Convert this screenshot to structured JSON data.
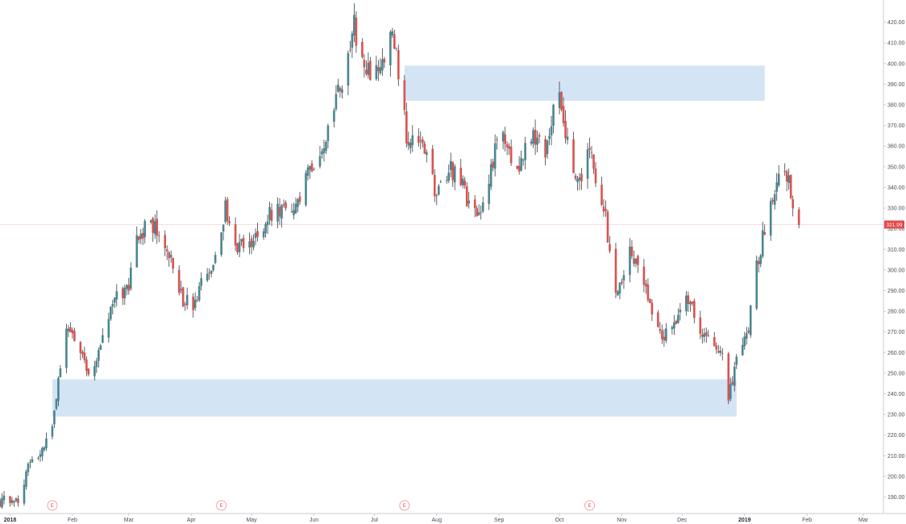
{
  "chart_data": {
    "type": "candlestick",
    "title": "",
    "xlabel": "",
    "ylabel": "",
    "ylim": [
      182,
      430
    ],
    "y_ticks": [
      "190.00",
      "200.00",
      "210.00",
      "220.00",
      "230.00",
      "240.00",
      "250.00",
      "260.00",
      "270.00",
      "280.00",
      "290.00",
      "300.00",
      "310.00",
      "320.00",
      "330.00",
      "340.00",
      "350.00",
      "360.00",
      "370.00",
      "380.00",
      "390.00",
      "400.00",
      "410.00",
      "420.00"
    ],
    "x_ticks": [
      {
        "label": "2018",
        "date": "2018-01-01",
        "year": true
      },
      {
        "label": "Feb",
        "date": "2018-02-01"
      },
      {
        "label": "Mar",
        "date": "2018-03-01"
      },
      {
        "label": "Apr",
        "date": "2018-04-01"
      },
      {
        "label": "May",
        "date": "2018-05-01"
      },
      {
        "label": "Jun",
        "date": "2018-06-01"
      },
      {
        "label": "Jul",
        "date": "2018-07-01"
      },
      {
        "label": "Aug",
        "date": "2018-08-01"
      },
      {
        "label": "Sep",
        "date": "2018-09-01"
      },
      {
        "label": "Oct",
        "date": "2018-10-01"
      },
      {
        "label": "Nov",
        "date": "2018-11-01"
      },
      {
        "label": "Dec",
        "date": "2018-12-01"
      },
      {
        "label": "2019",
        "date": "2019-01-01",
        "year": true
      },
      {
        "label": "Feb",
        "date": "2019-02-01"
      },
      {
        "label": "Mar",
        "date": "2019-03-01"
      }
    ],
    "x_range": [
      "2017-12-27",
      "2019-03-11"
    ],
    "last_price": {
      "label": "321.99",
      "value": 321.99
    },
    "earnings": [
      {
        "label": "E",
        "date": "2018-01-22"
      },
      {
        "label": "E",
        "date": "2018-04-16"
      },
      {
        "label": "E",
        "date": "2018-07-16"
      },
      {
        "label": "E",
        "date": "2018-10-16"
      }
    ],
    "zones": [
      {
        "x_start": "2018-01-22",
        "x_end": "2018-12-28",
        "y_low": 229,
        "y_high": 247
      },
      {
        "x_start": "2018-07-16",
        "x_end": "2019-01-11",
        "y_low": 382,
        "y_high": 399
      }
    ],
    "up_color": "#4a8690",
    "down_color": "#d9534f",
    "zone_color": "#d3e4f4",
    "last_price_color": "#e5484d",
    "waypoints": [
      [
        "2017-12-27",
        188
      ],
      [
        "2018-01-05",
        189
      ],
      [
        "2018-01-10",
        205
      ],
      [
        "2018-01-17",
        213
      ],
      [
        "2018-01-22",
        222
      ],
      [
        "2018-01-25",
        250
      ],
      [
        "2018-01-29",
        272
      ],
      [
        "2018-02-06",
        260
      ],
      [
        "2018-02-09",
        250
      ],
      [
        "2018-02-15",
        262
      ],
      [
        "2018-02-21",
        284
      ],
      [
        "2018-03-01",
        292
      ],
      [
        "2018-03-06",
        318
      ],
      [
        "2018-03-12",
        322
      ],
      [
        "2018-03-16",
        318
      ],
      [
        "2018-03-22",
        306
      ],
      [
        "2018-03-27",
        287
      ],
      [
        "2018-04-02",
        281
      ],
      [
        "2018-04-06",
        292
      ],
      [
        "2018-04-12",
        300
      ],
      [
        "2018-04-16",
        316
      ],
      [
        "2018-04-18",
        334
      ],
      [
        "2018-04-20",
        320
      ],
      [
        "2018-04-25",
        311
      ],
      [
        "2018-05-01",
        312
      ],
      [
        "2018-05-08",
        325
      ],
      [
        "2018-05-14",
        330
      ],
      [
        "2018-05-22",
        325
      ],
      [
        "2018-05-31",
        352
      ],
      [
        "2018-06-08",
        365
      ],
      [
        "2018-06-13",
        385
      ],
      [
        "2018-06-19",
        405
      ],
      [
        "2018-06-21",
        419
      ],
      [
        "2018-06-26",
        394
      ],
      [
        "2018-07-02",
        398
      ],
      [
        "2018-07-06",
        402
      ],
      [
        "2018-07-10",
        415
      ],
      [
        "2018-07-13",
        396
      ],
      [
        "2018-07-17",
        366
      ],
      [
        "2018-07-23",
        360
      ],
      [
        "2018-07-27",
        356
      ],
      [
        "2018-08-01",
        335
      ],
      [
        "2018-08-08",
        349
      ],
      [
        "2018-08-14",
        340
      ],
      [
        "2018-08-21",
        323
      ],
      [
        "2018-08-24",
        333
      ],
      [
        "2018-08-31",
        362
      ],
      [
        "2018-09-05",
        364
      ],
      [
        "2018-09-10",
        345
      ],
      [
        "2018-09-17",
        366
      ],
      [
        "2018-09-24",
        358
      ],
      [
        "2018-09-28",
        378
      ],
      [
        "2018-10-01",
        381
      ],
      [
        "2018-10-05",
        364
      ],
      [
        "2018-10-10",
        342
      ],
      [
        "2018-10-16",
        358
      ],
      [
        "2018-10-24",
        324
      ],
      [
        "2018-10-29",
        285
      ],
      [
        "2018-11-05",
        310
      ],
      [
        "2018-11-12",
        296
      ],
      [
        "2018-11-20",
        268
      ],
      [
        "2018-11-26",
        272
      ],
      [
        "2018-12-03",
        290
      ],
      [
        "2018-12-10",
        270
      ],
      [
        "2018-12-17",
        265
      ],
      [
        "2018-12-21",
        256
      ],
      [
        "2018-12-24",
        236
      ],
      [
        "2018-12-28",
        258
      ],
      [
        "2019-01-03",
        272
      ],
      [
        "2019-01-07",
        302
      ],
      [
        "2019-01-11",
        320
      ],
      [
        "2019-01-16",
        335
      ],
      [
        "2019-01-18",
        351
      ],
      [
        "2019-01-22",
        346
      ],
      [
        "2019-01-25",
        333
      ],
      [
        "2019-01-28",
        323
      ]
    ]
  }
}
